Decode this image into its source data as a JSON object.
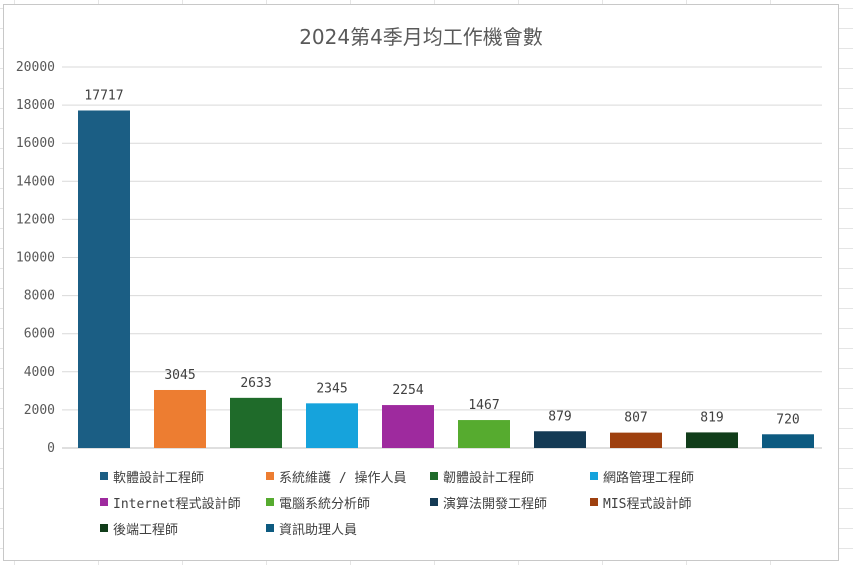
{
  "chart_data": {
    "type": "bar",
    "title": "2024第4季月均工作機會數",
    "xlabel": "",
    "ylabel": "",
    "ylim": [
      0,
      20000
    ],
    "yticks": [
      0,
      2000,
      4000,
      6000,
      8000,
      10000,
      12000,
      14000,
      16000,
      18000,
      20000
    ],
    "grid": true,
    "legend_position": "bottom",
    "series": [
      {
        "name": "軟體設計工程師",
        "value": 17717,
        "color": "#1b5e84"
      },
      {
        "name": "系統維護 / 操作人員",
        "value": 3045,
        "color": "#ed7d31"
      },
      {
        "name": "韌體設計工程師",
        "value": 2633,
        "color": "#1f6b2a"
      },
      {
        "name": "網路管理工程師",
        "value": 2345,
        "color": "#16a3dc"
      },
      {
        "name": "Internet程式設計師",
        "value": 2254,
        "color": "#9e2a9e"
      },
      {
        "name": "電腦系統分析師",
        "value": 1467,
        "color": "#56ab2f"
      },
      {
        "name": "演算法開發工程師",
        "value": 879,
        "color": "#143a54"
      },
      {
        "name": "MIS程式設計師",
        "value": 807,
        "color": "#9e400f"
      },
      {
        "name": "後端工程師",
        "value": 819,
        "color": "#113d1a"
      },
      {
        "name": "資訊助理人員",
        "value": 720,
        "color": "#0d5a80"
      }
    ]
  }
}
